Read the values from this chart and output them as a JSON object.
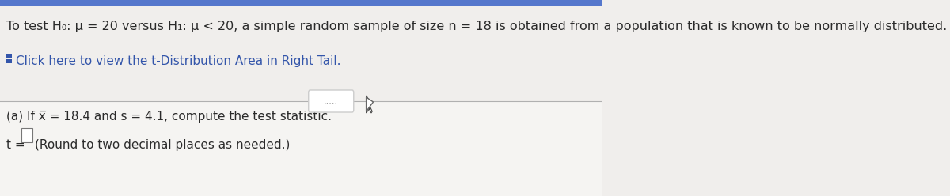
{
  "bg_top": "#f0eeec",
  "bg_bottom": "#f5f4f2",
  "line1": "To test H₀: μ = 20 versus H₁: μ < 20, a simple random sample of size n = 18 is obtained from a population that is known to be normally distributed. Answer parts (a)-(d).",
  "line2_text": "Click here to view the t-Distribution Area in Right Tail.",
  "dots_text": ".....",
  "part_a": "(a) If x̅ = 18.4 and s = 4.1, compute the test statistic.",
  "part_t": "t =",
  "part_round": "(Round to two decimal places as needed.)",
  "text_color": "#2a2a2a",
  "blue_color": "#3355aa",
  "gray_color": "#888888",
  "divider_color": "#b0b0b0",
  "font_size_main": 11.5,
  "font_size_small": 11.0
}
